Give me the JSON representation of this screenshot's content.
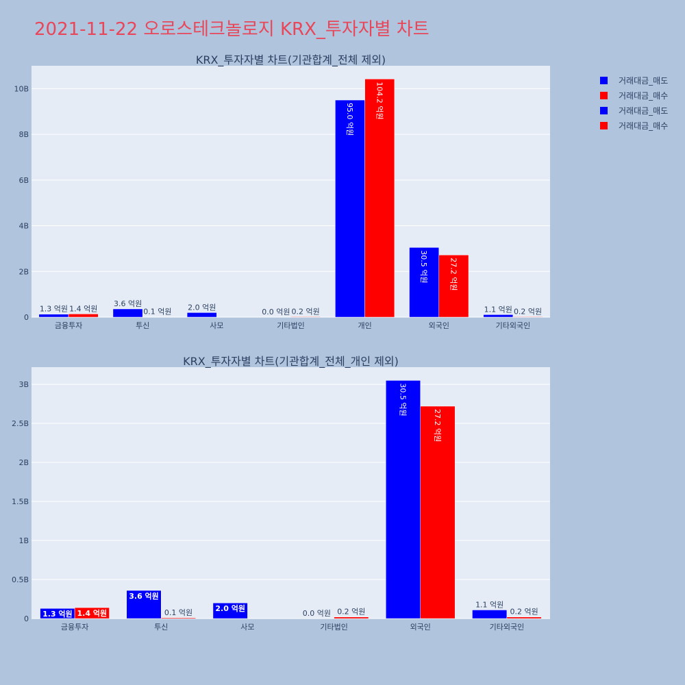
{
  "page": {
    "title": "2021-11-22 오로스테크놀로지 KRX_투자자별 차트"
  },
  "legend": {
    "items": [
      {
        "label": "거래대금_매도",
        "color": "#0000ff"
      },
      {
        "label": "거래대금_매수",
        "color": "#ff0000"
      },
      {
        "label": "거래대금_매도",
        "color": "#0000ff"
      },
      {
        "label": "거래대금_매수",
        "color": "#ff0000"
      }
    ]
  },
  "chart_data": [
    {
      "type": "bar",
      "title": "KRX_투자자별 차트(기관합계_전체 제외)",
      "categories": [
        "금융투자",
        "투신",
        "사모",
        "기타법인",
        "개인",
        "외국인",
        "기타외국인"
      ],
      "series": [
        {
          "name": "거래대금_매도",
          "color": "#0000ff",
          "values": [
            130000000,
            360000000,
            200000000,
            0,
            9500000000,
            3050000000,
            110000000
          ],
          "labels": [
            "1.3 억원",
            "3.6 억원",
            "2.0 억원",
            "0.0 억원",
            "95.0 억원",
            "30.5 억원",
            "1.1 억원"
          ]
        },
        {
          "name": "거래대금_매수",
          "color": "#ff0000",
          "values": [
            140000000,
            10000000,
            0,
            20000000,
            10420000000,
            2720000000,
            20000000
          ],
          "labels": [
            "1.4 억원",
            "0.1 억원",
            "",
            "0.2 억원",
            "104.2 억원",
            "27.2 억원",
            "0.2 억원"
          ]
        }
      ],
      "yticks": [
        0,
        2000000000,
        4000000000,
        6000000000,
        8000000000,
        10000000000
      ],
      "ytick_labels": [
        "0",
        "2B",
        "4B",
        "6B",
        "8B",
        "10B"
      ],
      "ylim": [
        0,
        11000000000
      ],
      "grid": true
    },
    {
      "type": "bar",
      "title": "KRX_투자자별 차트(기관합계_전체_개인 제외)",
      "categories": [
        "금융투자",
        "투신",
        "사모",
        "기타법인",
        "외국인",
        "기타외국인"
      ],
      "series": [
        {
          "name": "거래대금_매도",
          "color": "#0000ff",
          "values": [
            130000000,
            360000000,
            200000000,
            0,
            3050000000,
            110000000
          ],
          "labels": [
            "1.3 억원",
            "3.6 억원",
            "2.0 억원",
            "0.0 억원",
            "30.5 억원",
            "1.1 억원"
          ]
        },
        {
          "name": "거래대금_매수",
          "color": "#ff0000",
          "values": [
            140000000,
            10000000,
            0,
            20000000,
            2720000000,
            20000000
          ],
          "labels": [
            "1.4 억원",
            "0.1 억원",
            "",
            "0.2 억원",
            "27.2 억원",
            "0.2 억원"
          ]
        }
      ],
      "yticks": [
        0,
        500000000,
        1000000000,
        1500000000,
        2000000000,
        2500000000,
        3000000000
      ],
      "ytick_labels": [
        "0",
        "0.5B",
        "1B",
        "1.5B",
        "2B",
        "2.5B",
        "3B"
      ],
      "ylim": [
        0,
        3220000000
      ],
      "grid": true
    }
  ]
}
